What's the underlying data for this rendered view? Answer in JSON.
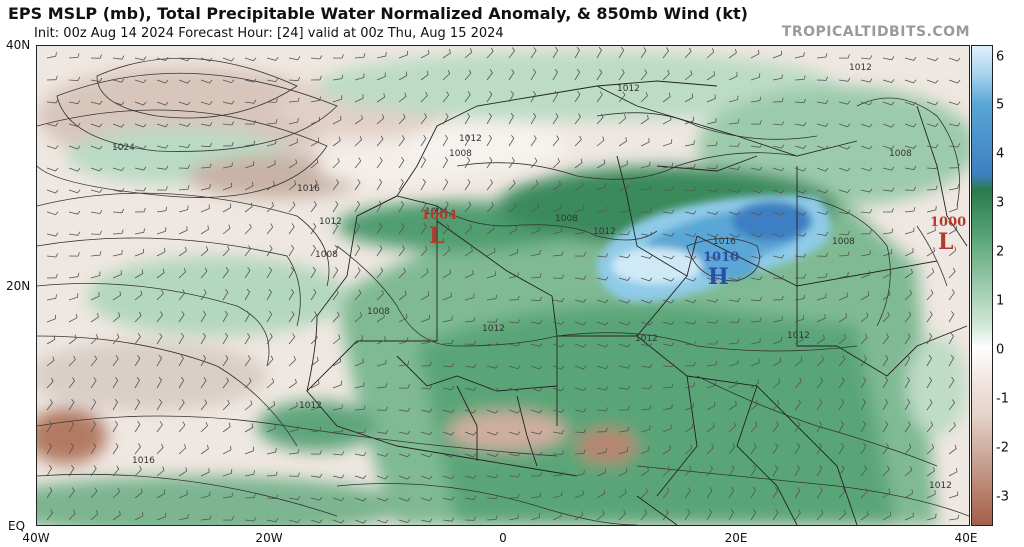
{
  "header": {
    "title": "EPS MSLP (mb), Total Precipitable Water Normalized Anomaly, & 850mb Wind (kt)",
    "subtitle": "Init: 00z Aug 14 2024   Forecast Hour: [24]   valid at 00z Thu, Aug 15 2024",
    "brand": "TROPICALTIDBITS.COM"
  },
  "axes": {
    "lat_labels": [
      "40N",
      "20N",
      "EQ"
    ],
    "lon_labels": [
      "40W",
      "20W",
      "0",
      "20E",
      "40E"
    ]
  },
  "colorbar": {
    "ticks": [
      "6",
      "5",
      "4",
      "3",
      "2",
      "1",
      "0",
      "-1",
      "-2",
      "-3"
    ],
    "colors": {
      "top": "#e0f0fa",
      "blue": "#3d7fc2",
      "dark_green": "#2a7a4b",
      "light_green": "#cfe5d5",
      "neutral": "#ffffff",
      "light_brown": "#e6d3c8",
      "dark_brown": "#a55e47"
    }
  },
  "isobars": {
    "labels": [
      "1024",
      "1016",
      "1012",
      "1008",
      "1004",
      "1012",
      "1008",
      "1012",
      "1008",
      "1012",
      "1016",
      "1012",
      "1016",
      "1012",
      "1008",
      "1012",
      "1012",
      "1008",
      "1012",
      "1008",
      "1012"
    ]
  },
  "pressure_centers": [
    {
      "value": "1004",
      "letter": "L",
      "color": "#b03a2e"
    },
    {
      "value": "1010",
      "letter": "H",
      "color": "#2b4fa8"
    },
    {
      "value": "1000",
      "letter": "L",
      "color": "#b03a2e"
    }
  ]
}
